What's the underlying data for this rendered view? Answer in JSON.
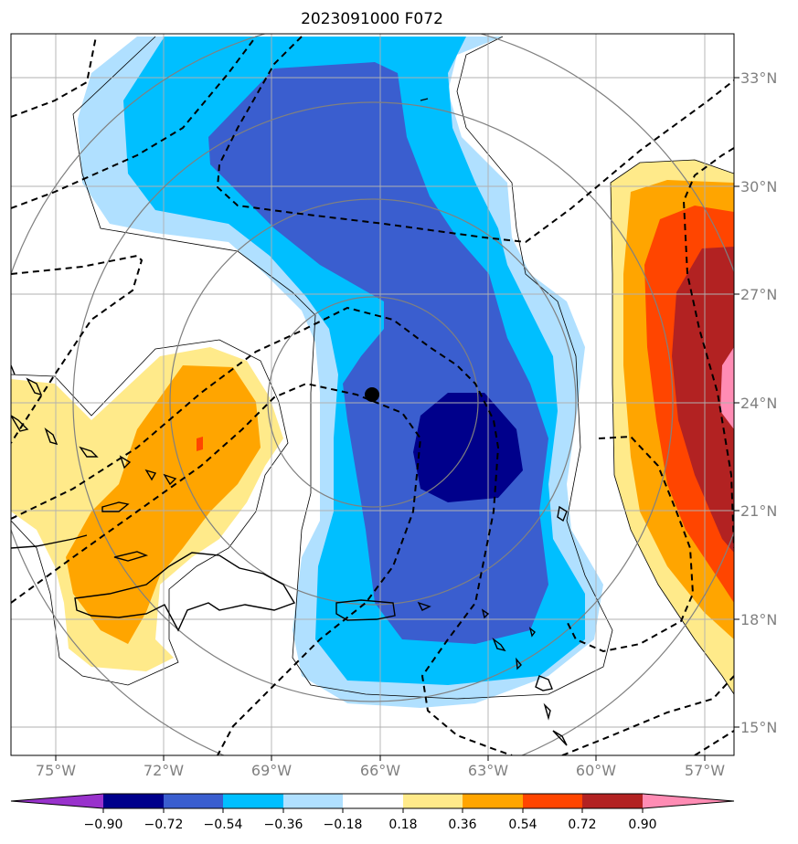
{
  "chart_data": {
    "type": "heatmap",
    "title": "2023091000 F072",
    "x_ticks": [
      "75°W",
      "72°W",
      "69°W",
      "66°W",
      "63°W",
      "60°W",
      "57°W"
    ],
    "x_tick_values": [
      -75,
      -72,
      -69,
      -66,
      -63,
      -60,
      -57
    ],
    "y_ticks": [
      "15°N",
      "18°N",
      "21°N",
      "24°N",
      "27°N",
      "30°N",
      "33°N"
    ],
    "y_tick_values": [
      15,
      18,
      21,
      24,
      27,
      30,
      33
    ],
    "lon_range": [
      -76.2,
      -56.2
    ],
    "lat_range": [
      14.2,
      34.2
    ],
    "grid": true,
    "center_marker": {
      "lon": -66.0,
      "lat": 24.2
    },
    "levels": [
      -0.9,
      -0.72,
      -0.54,
      -0.36,
      -0.18,
      0.18,
      0.36,
      0.54,
      0.72,
      0.9
    ],
    "level_labels": [
      "−0.90",
      "−0.72",
      "−0.54",
      "−0.36",
      "−0.18",
      "0.18",
      "0.36",
      "0.54",
      "0.72",
      "0.90"
    ],
    "colors": [
      "#9932cc",
      "#00008b",
      "#3a5ecf",
      "#00bfff",
      "#b0e0ff",
      "#ffffff",
      "#ffea8a",
      "#ffa500",
      "#ff4500",
      "#b22222",
      "#ff8cb4"
    ],
    "colorbar": {
      "orientation": "horizontal",
      "extend": "both",
      "position": "bottom"
    }
  }
}
